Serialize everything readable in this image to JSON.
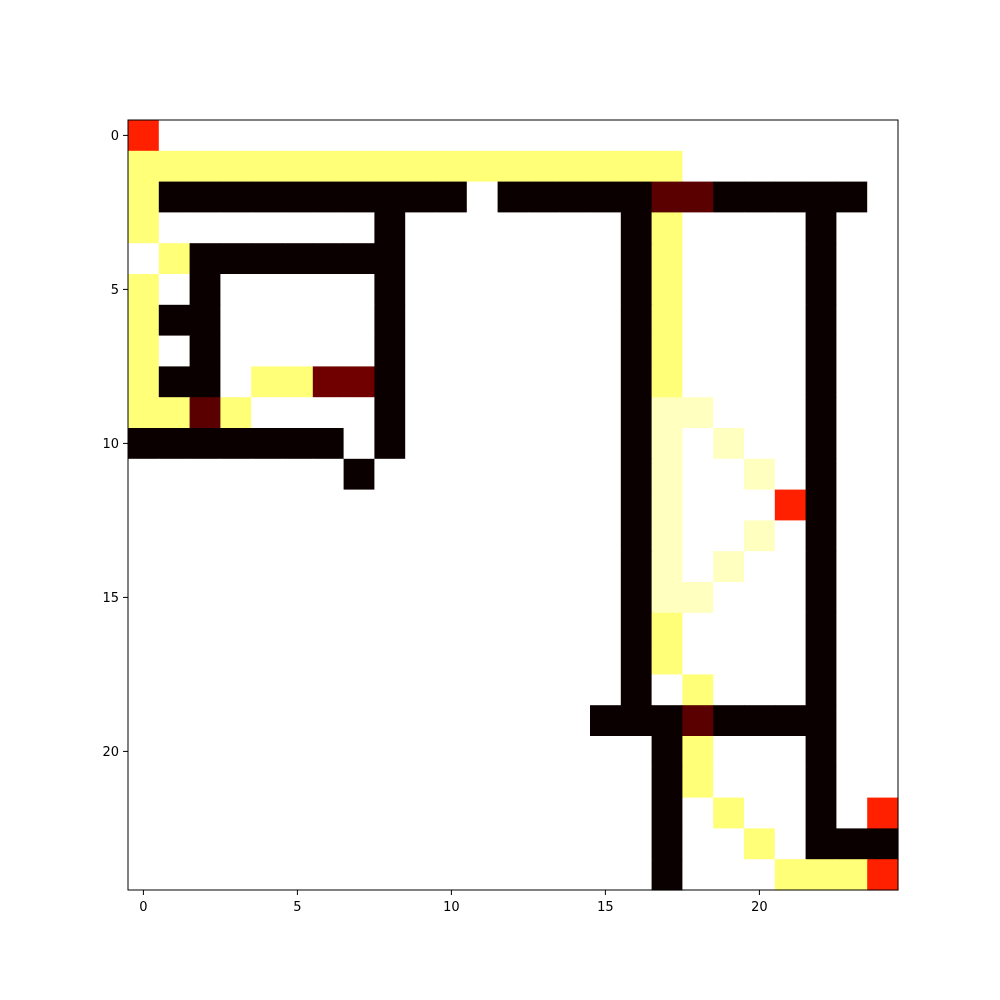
{
  "chart_data": {
    "type": "heatmap",
    "title": "",
    "xlabel": "",
    "ylabel": "",
    "grid": false,
    "colormap": "hot",
    "rows": 25,
    "cols": 25,
    "xlim": [
      -0.5,
      24.5
    ],
    "ylim": [
      24.5,
      -0.5
    ],
    "x_ticks": [
      0,
      5,
      10,
      15,
      20
    ],
    "y_ticks": [
      0,
      5,
      10,
      15,
      20
    ],
    "x_tick_labels": [
      "0",
      "5",
      "10",
      "15",
      "20"
    ],
    "y_tick_labels": [
      "0",
      "5",
      "10",
      "15",
      "20"
    ],
    "palette": {
      "W": "#ffffff",
      "B": "#0b0000",
      "D": "#5a0000",
      "M": "#700000",
      "R": "#ff2000",
      "Y": "#ffff78",
      "P": "#ffffc0"
    },
    "values": {
      "W": 1.0,
      "B": 0.0,
      "D": 0.1,
      "M": 0.15,
      "R": 0.35,
      "Y": 0.88,
      "P": 0.95
    },
    "grid_rows": [
      "RWWWWWWWWWWWWWWWWWWWWWWWW",
      "YYYYYYYYYYYYYYYYYYWWWWWWW",
      "YBBBBBBBBBBWBBBBBDDBBBBBW",
      "YWWWWWWWBWWWWWWWBYWWWWBWW",
      "WYBBBBBBBWWWWWWWBYWWWWBWW",
      "YWBWWWWWBWWWWWWWBYWWWWBWW",
      "YBBWWWWWBWWWWWWWBYWWWWBWW",
      "YWBWWWWWBWWWWWWWBYWWWWBWW",
      "YBBWYYMMBWWWWWWWBYWWWWBWW",
      "YYDYWWWWBWWWWWWWBPPWWWBWW",
      "BBBBBBBWBWWWWWWWBPWPWWBWW",
      "WWWWWWWBWWWWWWWWBPWWPWBWW",
      "WWWWWWWWWWWWWWWWBPWWWRBWW",
      "WWWWWWWWWWWWWWWWBPWWPWBWW",
      "WWWWWWWWWWWWWWWWBPWPWWBWW",
      "WWWWWWWWWWWWWWWWBPPWWWBWW",
      "WWWWWWWWWWWWWWWWBYWWWWBWW",
      "WWWWWWWWWWWWWWWWBYWWWWBWW",
      "WWWWWWWWWWWWWWWWBWYWWWBWW",
      "WWWWWWWWWWWWWWWBBBDBBBBWW",
      "WWWWWWWWWWWWWWWWWBYWWWBWW",
      "WWWWWWWWWWWWWWWWWBYWWWBWW",
      "WWWWWWWWWWWWWWWWWBWYWWBWR",
      "WWWWWWWWWWWWWWWWWBWWYWBBB",
      "WWWWWWWWWWWWWWWWWBWWWYYYR"
    ]
  }
}
